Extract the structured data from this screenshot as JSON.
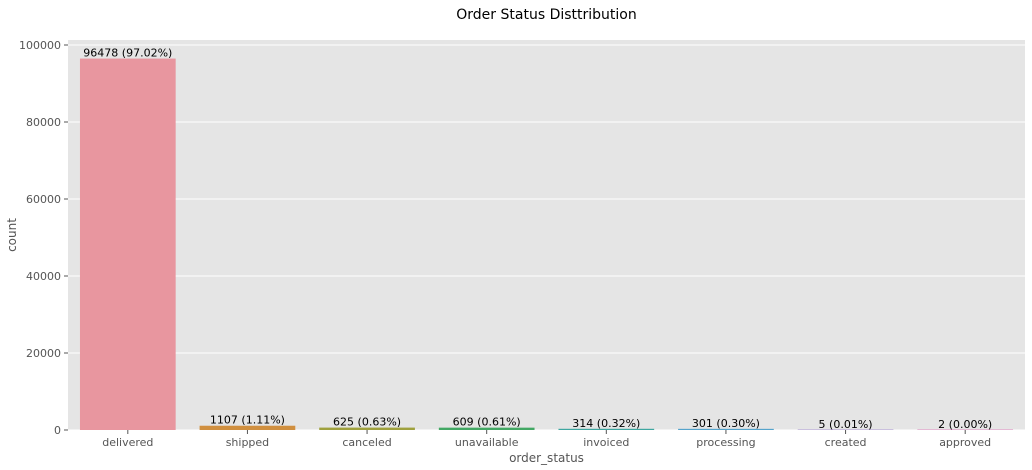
{
  "chart_data": {
    "type": "bar",
    "title": "Order Status Disttribution",
    "xlabel": "order_status",
    "ylabel": "count",
    "categories": [
      "delivered",
      "shipped",
      "canceled",
      "unavailable",
      "invoiced",
      "processing",
      "created",
      "approved"
    ],
    "values": [
      96478,
      1107,
      625,
      609,
      314,
      301,
      5,
      2
    ],
    "value_labels": [
      "96478 (97.02%)",
      "1107 (1.11%)",
      "625 (0.63%)",
      "609 (0.61%)",
      "314 (0.32%)",
      "301 (0.30%)",
      "5 (0.01%)",
      "2 (0.00%)"
    ],
    "colors": [
      "#e8969f",
      "#d08f3f",
      "#9fa13e",
      "#43a864",
      "#3fa7a1",
      "#55a4cc",
      "#b09cd8",
      "#e48dc4"
    ],
    "ylim": [
      0,
      101300
    ],
    "yticks": [
      0,
      20000,
      40000,
      60000,
      80000,
      100000
    ],
    "ytick_labels": [
      "0",
      "20000",
      "40000",
      "60000",
      "80000",
      "100000"
    ],
    "grid": true,
    "legend": false,
    "background": "#e5e5e5",
    "grid_color": "#ffffff",
    "text_color": "#000000",
    "tick_label_color": "#555555"
  }
}
